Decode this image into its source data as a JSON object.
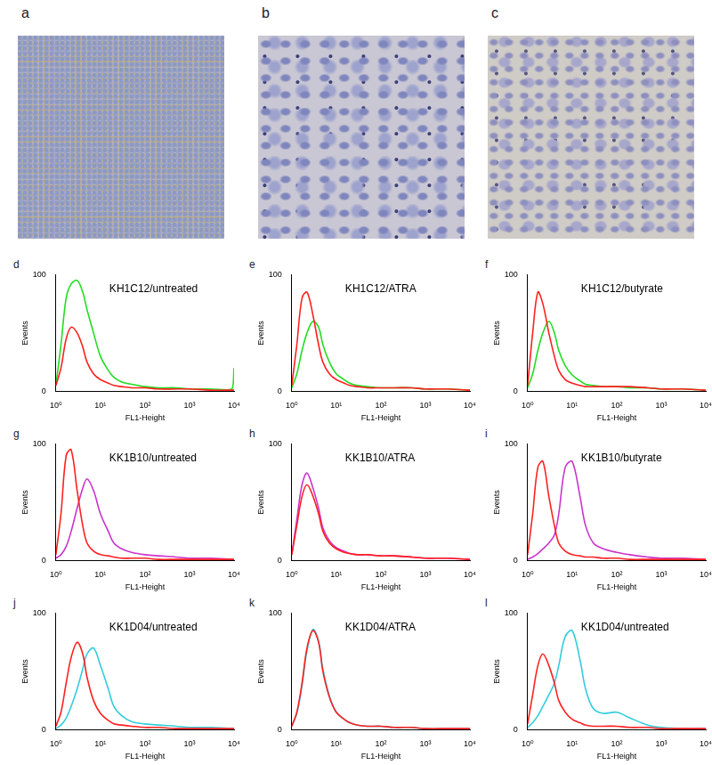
{
  "images": [
    {
      "label": "a"
    },
    {
      "label": "b"
    },
    {
      "label": "c"
    }
  ],
  "chart_data": [
    {
      "panel": "d",
      "type": "line",
      "annotation": "KH1C12/untreated",
      "x_label": "FL1-Height",
      "y_label": "Events",
      "x": [
        1,
        1.3,
        1.7,
        2.2,
        3,
        4,
        5,
        7,
        10,
        15,
        20,
        30,
        50,
        100,
        200,
        500,
        1000,
        3000,
        9000,
        10000
      ],
      "series": [
        {
          "color": "#ff2020",
          "values": [
            5,
            20,
            45,
            55,
            50,
            38,
            25,
            15,
            10,
            7,
            5,
            4,
            3,
            3,
            2,
            2,
            2,
            1,
            1,
            1
          ]
        },
        {
          "color": "#22dd22",
          "values": [
            5,
            40,
            80,
            92,
            95,
            85,
            70,
            50,
            30,
            18,
            12,
            8,
            6,
            4,
            3,
            3,
            2,
            2,
            2,
            20
          ]
        }
      ],
      "log": "x",
      "xlim": [
        1,
        10000
      ],
      "xticks": [
        {
          "value": 1,
          "label": "10⁰"
        },
        {
          "value": 10,
          "label": "10¹"
        },
        {
          "value": 100,
          "label": "10²"
        },
        {
          "value": 1000,
          "label": "10³"
        },
        {
          "value": 10000,
          "label": "10⁴"
        }
      ],
      "ylim": [
        0,
        100
      ],
      "yticks": [
        0,
        100
      ],
      "grid": false
    },
    {
      "panel": "e",
      "type": "line",
      "annotation": "KH1C12/ATRA",
      "x_label": "FL1-Height",
      "y_label": "Events",
      "x": [
        1,
        1.3,
        1.7,
        2.2,
        3,
        4,
        5,
        7,
        10,
        15,
        20,
        30,
        50,
        100,
        200,
        500,
        1000,
        3000,
        9000,
        10000
      ],
      "series": [
        {
          "color": "#ff2020",
          "values": [
            5,
            40,
            80,
            85,
            65,
            40,
            25,
            15,
            10,
            7,
            5,
            4,
            3,
            3,
            3,
            3,
            2,
            2,
            1,
            1
          ]
        },
        {
          "color": "#22dd22",
          "values": [
            3,
            15,
            35,
            50,
            60,
            55,
            40,
            25,
            15,
            10,
            7,
            5,
            4,
            3,
            3,
            3,
            2,
            2,
            1,
            1
          ]
        }
      ],
      "log": "x",
      "xlim": [
        1,
        10000
      ],
      "xticks": [
        {
          "value": 1,
          "label": "10⁰"
        },
        {
          "value": 10,
          "label": "10¹"
        },
        {
          "value": 100,
          "label": "10²"
        },
        {
          "value": 1000,
          "label": "10³"
        },
        {
          "value": 10000,
          "label": "10⁴"
        }
      ],
      "ylim": [
        0,
        100
      ],
      "yticks": [
        0,
        100
      ],
      "grid": false
    },
    {
      "panel": "f",
      "type": "line",
      "annotation": "KH1C12/butyrate",
      "x_label": "FL1-Height",
      "y_label": "Events",
      "x": [
        1,
        1.3,
        1.7,
        2.2,
        3,
        4,
        5,
        7,
        10,
        15,
        20,
        30,
        50,
        100,
        200,
        500,
        1000,
        3000,
        9000,
        10000
      ],
      "series": [
        {
          "color": "#ff2020",
          "values": [
            5,
            50,
            85,
            75,
            50,
            30,
            18,
            10,
            7,
            5,
            4,
            4,
            4,
            4,
            4,
            3,
            2,
            2,
            1,
            1
          ]
        },
        {
          "color": "#22dd22",
          "values": [
            3,
            15,
            35,
            50,
            60,
            50,
            35,
            22,
            14,
            9,
            6,
            5,
            4,
            4,
            3,
            3,
            2,
            2,
            1,
            1
          ]
        }
      ],
      "log": "x",
      "xlim": [
        1,
        10000
      ],
      "xticks": [
        {
          "value": 1,
          "label": "10⁰"
        },
        {
          "value": 10,
          "label": "10¹"
        },
        {
          "value": 100,
          "label": "10²"
        },
        {
          "value": 1000,
          "label": "10³"
        },
        {
          "value": 10000,
          "label": "10⁴"
        }
      ],
      "ylim": [
        0,
        100
      ],
      "yticks": [
        0,
        100
      ],
      "grid": false
    },
    {
      "panel": "g",
      "type": "line",
      "annotation": "KK1B10/untreated",
      "x_label": "FL1-Height",
      "y_label": "Events",
      "x": [
        1,
        1.3,
        1.7,
        2.2,
        3,
        4,
        5,
        7,
        10,
        15,
        20,
        30,
        50,
        100,
        200,
        500,
        1000,
        3000,
        9000,
        10000
      ],
      "series": [
        {
          "color": "#ff2020",
          "values": [
            5,
            40,
            90,
            95,
            60,
            30,
            15,
            8,
            5,
            4,
            3,
            2,
            2,
            2,
            1,
            1,
            1,
            1,
            1,
            1
          ]
        },
        {
          "color": "#cc33cc",
          "values": [
            2,
            5,
            12,
            25,
            45,
            62,
            70,
            60,
            40,
            25,
            15,
            10,
            7,
            5,
            4,
            3,
            2,
            2,
            1,
            1
          ]
        }
      ],
      "log": "x",
      "xlim": [
        1,
        10000
      ],
      "xticks": [
        {
          "value": 1,
          "label": "10⁰"
        },
        {
          "value": 10,
          "label": "10¹"
        },
        {
          "value": 100,
          "label": "10²"
        },
        {
          "value": 1000,
          "label": "10³"
        },
        {
          "value": 10000,
          "label": "10⁴"
        }
      ],
      "ylim": [
        0,
        100
      ],
      "yticks": [
        0,
        100
      ],
      "grid": false
    },
    {
      "panel": "h",
      "type": "line",
      "annotation": "KK1B10/ATRA",
      "x_label": "FL1-Height",
      "y_label": "Events",
      "x": [
        1,
        1.3,
        1.7,
        2.2,
        3,
        4,
        5,
        7,
        10,
        15,
        20,
        30,
        50,
        100,
        200,
        500,
        1000,
        3000,
        9000,
        10000
      ],
      "series": [
        {
          "color": "#ff2020",
          "values": [
            5,
            30,
            55,
            65,
            55,
            40,
            25,
            15,
            10,
            7,
            6,
            5,
            5,
            4,
            4,
            3,
            2,
            2,
            1,
            1
          ]
        },
        {
          "color": "#cc33cc",
          "values": [
            5,
            35,
            65,
            75,
            62,
            45,
            28,
            17,
            11,
            8,
            6,
            5,
            5,
            4,
            4,
            3,
            2,
            2,
            1,
            1
          ]
        }
      ],
      "log": "x",
      "xlim": [
        1,
        10000
      ],
      "xticks": [
        {
          "value": 1,
          "label": "10⁰"
        },
        {
          "value": 10,
          "label": "10¹"
        },
        {
          "value": 100,
          "label": "10²"
        },
        {
          "value": 1000,
          "label": "10³"
        },
        {
          "value": 10000,
          "label": "10⁴"
        }
      ],
      "ylim": [
        0,
        100
      ],
      "yticks": [
        0,
        100
      ],
      "grid": false
    },
    {
      "panel": "i",
      "type": "line",
      "annotation": "KK1B10/butyrate",
      "x_label": "FL1-Height",
      "y_label": "Events",
      "x": [
        1,
        1.3,
        1.7,
        2.2,
        3,
        4,
        5,
        7,
        10,
        15,
        20,
        30,
        50,
        100,
        200,
        500,
        1000,
        3000,
        9000,
        10000
      ],
      "series": [
        {
          "color": "#ff2020",
          "values": [
            5,
            40,
            80,
            85,
            55,
            30,
            15,
            8,
            5,
            4,
            3,
            3,
            2,
            2,
            1,
            1,
            1,
            1,
            1,
            1
          ]
        },
        {
          "color": "#cc33cc",
          "values": [
            1,
            3,
            6,
            10,
            15,
            22,
            40,
            80,
            85,
            55,
            30,
            15,
            10,
            7,
            5,
            3,
            2,
            2,
            1,
            1
          ]
        }
      ],
      "log": "x",
      "xlim": [
        1,
        10000
      ],
      "xticks": [
        {
          "value": 1,
          "label": "10⁰"
        },
        {
          "value": 10,
          "label": "10¹"
        },
        {
          "value": 100,
          "label": "10²"
        },
        {
          "value": 1000,
          "label": "10³"
        },
        {
          "value": 10000,
          "label": "10⁴"
        }
      ],
      "ylim": [
        0,
        100
      ],
      "yticks": [
        0,
        100
      ],
      "grid": false
    },
    {
      "panel": "j",
      "type": "line",
      "annotation": "KK1D04/untreated",
      "x_label": "FL1-Height",
      "y_label": "Events",
      "x": [
        1,
        1.3,
        1.7,
        2.2,
        3,
        4,
        5,
        7,
        10,
        15,
        20,
        30,
        50,
        100,
        200,
        500,
        1000,
        3000,
        9000,
        10000
      ],
      "series": [
        {
          "color": "#ff2020",
          "values": [
            3,
            15,
            40,
            62,
            75,
            65,
            45,
            25,
            14,
            8,
            5,
            4,
            3,
            2,
            2,
            1,
            1,
            1,
            1,
            1
          ]
        },
        {
          "color": "#33ccdd",
          "values": [
            1,
            4,
            10,
            20,
            35,
            52,
            65,
            70,
            55,
            35,
            20,
            12,
            7,
            5,
            4,
            3,
            2,
            2,
            1,
            1
          ]
        }
      ],
      "log": "x",
      "xlim": [
        1,
        10000
      ],
      "xticks": [
        {
          "value": 1,
          "label": "10⁰"
        },
        {
          "value": 10,
          "label": "10¹"
        },
        {
          "value": 100,
          "label": "10²"
        },
        {
          "value": 1000,
          "label": "10³"
        },
        {
          "value": 10000,
          "label": "10⁴"
        }
      ],
      "ylim": [
        0,
        100
      ],
      "yticks": [
        0,
        100
      ],
      "grid": false
    },
    {
      "panel": "k",
      "type": "line",
      "annotation": "KK1D04/ATRA",
      "x_label": "FL1-Height",
      "y_label": "Events",
      "x": [
        1,
        1.3,
        1.7,
        2.2,
        3,
        4,
        5,
        7,
        10,
        15,
        20,
        30,
        50,
        100,
        200,
        500,
        1000,
        3000,
        9000,
        10000
      ],
      "series": [
        {
          "color": "#ff2020",
          "values": [
            3,
            15,
            40,
            70,
            85,
            75,
            50,
            28,
            15,
            9,
            6,
            4,
            3,
            3,
            2,
            2,
            1,
            1,
            1,
            1
          ]
        },
        {
          "color": "#33ccdd",
          "values": [
            3,
            14,
            38,
            68,
            86,
            76,
            52,
            29,
            15,
            9,
            6,
            4,
            3,
            3,
            2,
            2,
            1,
            1,
            1,
            1
          ]
        }
      ],
      "log": "x",
      "xlim": [
        1,
        10000
      ],
      "xticks": [
        {
          "value": 1,
          "label": "10⁰"
        },
        {
          "value": 10,
          "label": "10¹"
        },
        {
          "value": 100,
          "label": "10²"
        },
        {
          "value": 1000,
          "label": "10³"
        },
        {
          "value": 10000,
          "label": "10⁴"
        }
      ],
      "ylim": [
        0,
        100
      ],
      "yticks": [
        0,
        100
      ],
      "grid": false
    },
    {
      "panel": "l",
      "type": "line",
      "annotation": "KK1D04/untreated",
      "x_label": "FL1-Height",
      "y_label": "Events",
      "x": [
        1,
        1.3,
        1.7,
        2.2,
        3,
        4,
        5,
        7,
        10,
        15,
        20,
        30,
        50,
        100,
        200,
        500,
        1000,
        3000,
        9000,
        10000
      ],
      "series": [
        {
          "color": "#ff2020",
          "values": [
            5,
            30,
            55,
            65,
            55,
            40,
            25,
            15,
            9,
            6,
            4,
            3,
            3,
            3,
            2,
            2,
            1,
            1,
            1,
            1
          ]
        },
        {
          "color": "#33ccdd",
          "values": [
            2,
            6,
            12,
            20,
            30,
            40,
            55,
            80,
            85,
            60,
            35,
            18,
            14,
            15,
            10,
            4,
            2,
            1,
            1,
            1
          ]
        }
      ],
      "log": "x",
      "xlim": [
        1,
        10000
      ],
      "xticks": [
        {
          "value": 1,
          "label": "10⁰"
        },
        {
          "value": 10,
          "label": "10¹"
        },
        {
          "value": 100,
          "label": "10²"
        },
        {
          "value": 1000,
          "label": "10³"
        },
        {
          "value": 10000,
          "label": "10⁴"
        }
      ],
      "ylim": [
        0,
        100
      ],
      "yticks": [
        0,
        100
      ],
      "grid": false
    }
  ]
}
